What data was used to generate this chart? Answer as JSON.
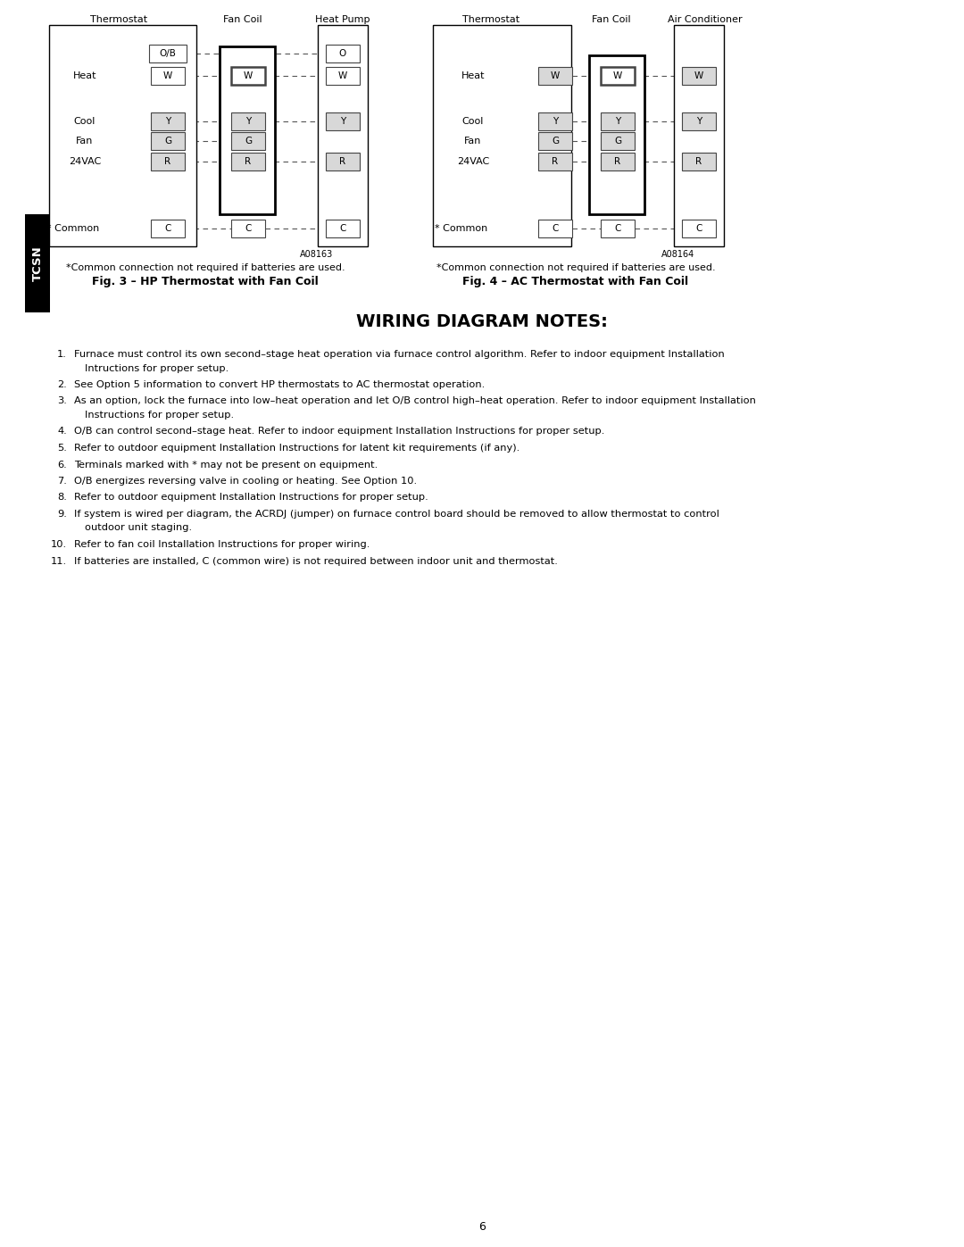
{
  "title": "WIRING DIAGRAM NOTES:",
  "fig3_title": "Fig. 3 – HP Thermostat with Fan Coil",
  "fig4_title": "Fig. 4 – AC Thermostat with Fan Coil",
  "common_note": "*Common connection not required if batteries are used.",
  "fig3_label": "A08163",
  "fig4_label": "A08164",
  "tcsn_label": "TCSN",
  "notes": [
    [
      "Furnace must control its own second–stage heat operation via furnace control algorithm. Refer to indoor equipment Installation",
      "Intructions for proper setup."
    ],
    [
      "See Option 5 information to convert HP thermostats to AC thermostat operation."
    ],
    [
      "As an option, lock the furnace into low–heat operation and let O/B control high–heat operation. Refer to indoor equipment Installation",
      "Instructions for proper setup."
    ],
    [
      "O/B can control second–stage heat. Refer to indoor equipment Installation Instructions for proper setup."
    ],
    [
      "Refer to outdoor equipment Installation Instructions for latent kit requirements (if any)."
    ],
    [
      "Terminals marked with * may not be present on equipment."
    ],
    [
      "O/B energizes reversing valve in cooling or heating. See Option 10."
    ],
    [
      "Refer to outdoor equipment Installation Instructions for proper setup."
    ],
    [
      "If system is wired per diagram, the ACRDJ (jumper) on furnace control board should be removed to allow thermostat to control",
      "outdoor unit staging."
    ],
    [
      "Refer to fan coil Installation Instructions for proper wiring."
    ],
    [
      "If batteries are installed, C (common wire) is not required between indoor unit and thermostat."
    ]
  ],
  "page_number": "6",
  "bg_color": "#ffffff"
}
